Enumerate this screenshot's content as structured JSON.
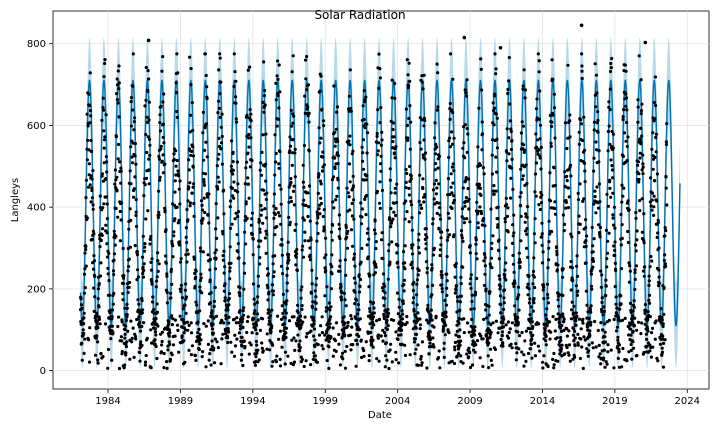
{
  "chart_data": {
    "type": "scatter",
    "title": "Solar Radiation",
    "xlabel": "Date",
    "ylabel": "Langleys",
    "xlim": [
      1980.2,
      2025.5
    ],
    "ylim": [
      -45,
      880
    ],
    "x_ticks": [
      {
        "value": 1984,
        "label": "1984"
      },
      {
        "value": 1989,
        "label": "1989"
      },
      {
        "value": 1994,
        "label": "1994"
      },
      {
        "value": 1999,
        "label": "1999"
      },
      {
        "value": 2004,
        "label": "2004"
      },
      {
        "value": 2009,
        "label": "2009"
      },
      {
        "value": 2014,
        "label": "2014"
      },
      {
        "value": 2019,
        "label": "2019"
      },
      {
        "value": 2024,
        "label": "2024"
      }
    ],
    "y_ticks": [
      {
        "value": 0,
        "label": "0"
      },
      {
        "value": 200,
        "label": "200"
      },
      {
        "value": 400,
        "label": "400"
      },
      {
        "value": 600,
        "label": "600"
      },
      {
        "value": 800,
        "label": "800"
      }
    ],
    "grid": true,
    "observed": {
      "x_range": [
        1982.1,
        2022.6
      ],
      "y_range": [
        5,
        845
      ],
      "color": "#000000"
    },
    "forecast": {
      "x_range": [
        1982.1,
        2023.5
      ],
      "y_range": [
        110,
        710
      ],
      "line_color": "#0072B2",
      "interval_color": "#a8d3e8"
    },
    "outliers": [
      {
        "x": 1986.8,
        "y": 808
      },
      {
        "x": 2008.6,
        "y": 815
      },
      {
        "x": 2016.7,
        "y": 845
      },
      {
        "x": 2011.1,
        "y": 790
      },
      {
        "x": 2021.1,
        "y": 803
      }
    ]
  }
}
